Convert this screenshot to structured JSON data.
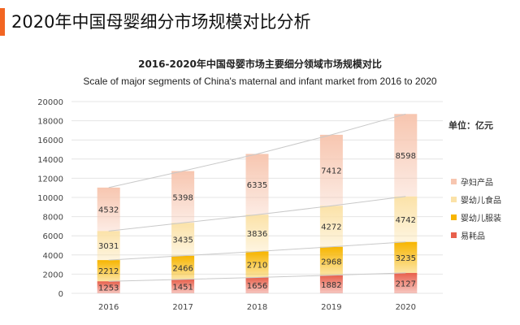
{
  "page": {
    "title": "2020年中国母婴细分市场规模对比分析",
    "accent_color": "#f26522"
  },
  "chart_data": {
    "type": "bar",
    "stacked": true,
    "title": "2016-2020年中国母婴市场主要细分领域市场规模对比",
    "subtitle": "Scale of major segments of China's maternal and infant market from 2016 to 2020",
    "unit": "单位：亿元",
    "categories": [
      "2016",
      "2017",
      "2018",
      "2019",
      "2020"
    ],
    "ylim": [
      0,
      20000
    ],
    "yticks": [
      "0",
      "2000",
      "4000",
      "6000",
      "8000",
      "10000",
      "12000",
      "14000",
      "16000",
      "18000",
      "20000"
    ],
    "grid": true,
    "legend_position": "right",
    "series": [
      {
        "name": "易耗品",
        "values": [
          1253,
          1451,
          1656,
          1882,
          2127
        ],
        "color": "#e8604c"
      },
      {
        "name": "婴幼儿服装",
        "values": [
          2212,
          2466,
          2710,
          2968,
          3235
        ],
        "color": "#f7b500"
      },
      {
        "name": "婴幼儿食品",
        "values": [
          3031,
          3435,
          3836,
          4272,
          4742
        ],
        "color": "#fbe2a8"
      },
      {
        "name": "孕妇产品",
        "values": [
          4532,
          5398,
          6335,
          7412,
          8598
        ],
        "color": "#f7c6b0"
      }
    ]
  }
}
